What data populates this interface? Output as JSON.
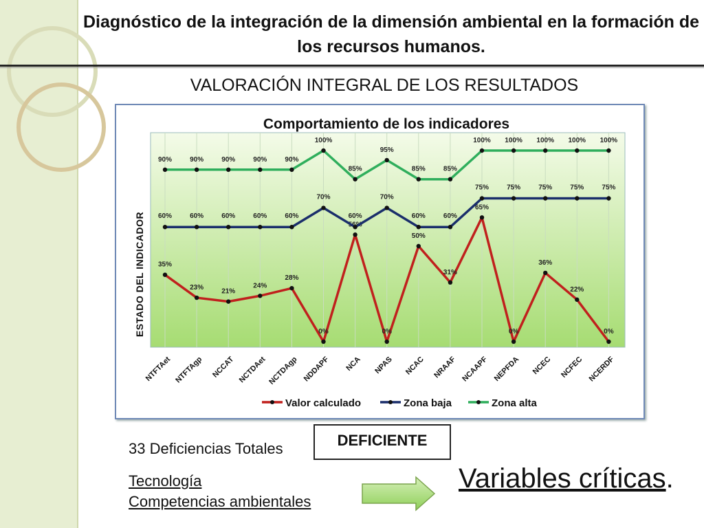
{
  "slide": {
    "title": "Diagnóstico de la integración de la dimensión ambiental en la formación de los recursos humanos.",
    "subtitle": "VALORACIÓN INTEGRAL DE LOS RESULTADOS",
    "total_deficiencies": "33 Deficiencias Totales",
    "verdict": "DEFICIENTE",
    "variables": [
      "Tecnología",
      "Competencias ambientales"
    ],
    "critical_word": "Variables críticas",
    "critical_dot": ".",
    "colors": {
      "band": "#e7eed2",
      "arrow": "#9bd36a",
      "frame": "#6f89b6"
    }
  },
  "chart_data": {
    "type": "line",
    "title": "Comportamiento de los indicadores",
    "ylabel": "ESTADO DEL INDICADOR",
    "xlabel": "",
    "ylim": [
      0,
      100
    ],
    "grid": true,
    "legend_placement": "bottom",
    "categories": [
      "NTFTAet",
      "NTFTAgp",
      "NCCAT",
      "NCTDAet",
      "NCTDAgp",
      "NDDAPF",
      "NCA",
      "NPAS",
      "NCAC",
      "NRAAF",
      "NCAAPF",
      "NEPFDA",
      "NCEC",
      "NCFEC",
      "NCERDF"
    ],
    "series": [
      {
        "name": "Valor calculado",
        "color": "#c0201d",
        "values": [
          35,
          23,
          21,
          24,
          28,
          0,
          56,
          0,
          50,
          31,
          65,
          0,
          36,
          22,
          0
        ],
        "labels": [
          "35%",
          "23%",
          "21%",
          "24%",
          "28%",
          "0%",
          "56%",
          "0%",
          "50%",
          "31%",
          "65%",
          "0%",
          "36%",
          "22%",
          "0%"
        ]
      },
      {
        "name": "Zona baja",
        "color": "#1a2e6b",
        "values": [
          60,
          60,
          60,
          60,
          60,
          70,
          60,
          70,
          60,
          60,
          75,
          75,
          75,
          75,
          75
        ],
        "labels": [
          "60%",
          "60%",
          "60%",
          "60%",
          "60%",
          "70%",
          "60%",
          "70%",
          "60%",
          "60%",
          "75%",
          "75%",
          "75%",
          "75%",
          "75%"
        ]
      },
      {
        "name": "Zona alta",
        "color": "#2fae5c",
        "values": [
          90,
          90,
          90,
          90,
          90,
          100,
          85,
          95,
          85,
          85,
          100,
          100,
          100,
          100,
          100
        ],
        "labels": [
          "90%",
          "90%",
          "90%",
          "90%",
          "90%",
          "100%",
          "85%",
          "95%",
          "85%",
          "85%",
          "100%",
          "100%",
          "100%",
          "100%",
          "100%"
        ]
      }
    ]
  }
}
